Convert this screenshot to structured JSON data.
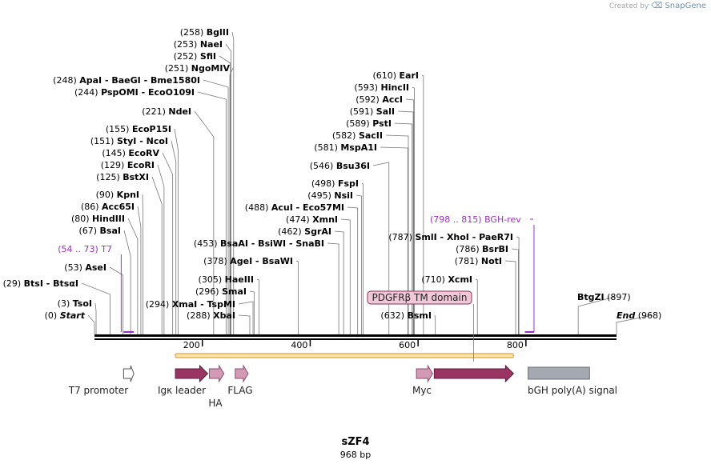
{
  "watermark": {
    "prefix": "Created by",
    "brand": "SnapGene"
  },
  "plasmid": {
    "name": "sZF4",
    "length": "968 bp",
    "total_bp": 968
  },
  "colors": {
    "backbone": "#000000",
    "primer": "#9b30c8",
    "feature_arrow": "#9a3462",
    "small_arrow": "#d29ab4",
    "polyA": "#a4a8b0",
    "orf_fill": "#f9e6b2",
    "orf_stroke": "#e0a23c",
    "tm_label_fill": "#f0c9d8",
    "tm_label_stroke": "#8a3050",
    "line": "#555555"
  },
  "ticks": [
    {
      "bp": 200,
      "label": "200"
    },
    {
      "bp": 400,
      "label": "400"
    },
    {
      "bp": 600,
      "label": "600"
    },
    {
      "bp": 800,
      "label": "800"
    }
  ],
  "sites": [
    {
      "bp": 258,
      "pos": "(258)",
      "name": "BglII"
    },
    {
      "bp": 253,
      "pos": "(253)",
      "name": "NaeI"
    },
    {
      "bp": 252,
      "pos": "(252)",
      "name": "SfiI"
    },
    {
      "bp": 251,
      "pos": "(251)",
      "name": "NgoMIV"
    },
    {
      "bp": 248,
      "pos": "(248)",
      "name": "ApaI  - BaeGI  - Bme1580I"
    },
    {
      "bp": 244,
      "pos": "(244)",
      "name": "PspOMI  - EcoO109I"
    },
    {
      "bp": 221,
      "pos": "(221)",
      "name": "NdeI"
    },
    {
      "bp": 155,
      "pos": "(155)",
      "name": "EcoP15I"
    },
    {
      "bp": 151,
      "pos": "(151)",
      "name": "StyI  - NcoI"
    },
    {
      "bp": 145,
      "pos": "(145)",
      "name": "EcoRV"
    },
    {
      "bp": 129,
      "pos": "(129)",
      "name": "EcoRI"
    },
    {
      "bp": 125,
      "pos": "(125)",
      "name": "BstXI"
    },
    {
      "bp": 90,
      "pos": "(90)",
      "name": "KpnI"
    },
    {
      "bp": 86,
      "pos": "(86)",
      "name": "Acc65I"
    },
    {
      "bp": 80,
      "pos": "(80)",
      "name": "HindIII"
    },
    {
      "bp": 67,
      "pos": "(67)",
      "name": "BsaI"
    },
    {
      "bp": 53,
      "pos": "(53)",
      "name": "AseI"
    },
    {
      "bp": 29,
      "pos": "(29)",
      "name": "BtsI  - BtsαI"
    },
    {
      "bp": 3,
      "pos": "(3)",
      "name": "TsoI"
    },
    {
      "bp": 0,
      "pos": "(0)",
      "name": "Start"
    },
    {
      "bp": 294,
      "pos": "(294)",
      "name": "XmaI  - TspMI"
    },
    {
      "bp": 288,
      "pos": "(288)",
      "name": "XbaI"
    },
    {
      "bp": 296,
      "pos": "(296)",
      "name": "SmaI"
    },
    {
      "bp": 305,
      "pos": "(305)",
      "name": "HaeIII"
    },
    {
      "bp": 378,
      "pos": "(378)",
      "name": "AgeI  - BsaWI"
    },
    {
      "bp": 453,
      "pos": "(453)",
      "name": "BsaAI  - BsiWI  - SnaBI"
    },
    {
      "bp": 462,
      "pos": "(462)",
      "name": "SgrAI"
    },
    {
      "bp": 474,
      "pos": "(474)",
      "name": "XmnI"
    },
    {
      "bp": 488,
      "pos": "(488)",
      "name": "AcuI  - Eco57MI"
    },
    {
      "bp": 495,
      "pos": "(495)",
      "name": "NsiI"
    },
    {
      "bp": 498,
      "pos": "(498)",
      "name": "FspI"
    },
    {
      "bp": 546,
      "pos": "(546)",
      "name": "Bsu36I"
    },
    {
      "bp": 581,
      "pos": "(581)",
      "name": "MspA1I"
    },
    {
      "bp": 582,
      "pos": "(582)",
      "name": "SacII"
    },
    {
      "bp": 589,
      "pos": "(589)",
      "name": "PstI"
    },
    {
      "bp": 591,
      "pos": "(591)",
      "name": "SalI"
    },
    {
      "bp": 592,
      "pos": "(592)",
      "name": "AccI"
    },
    {
      "bp": 593,
      "pos": "(593)",
      "name": "HincII"
    },
    {
      "bp": 610,
      "pos": "(610)",
      "name": "EarI"
    },
    {
      "bp": 787,
      "pos": "(787)",
      "name": "SmlI  - XhoI  - PaeR7I"
    },
    {
      "bp": 786,
      "pos": "(786)",
      "name": "BsrBI"
    },
    {
      "bp": 781,
      "pos": "(781)",
      "name": "NotI"
    },
    {
      "bp": 710,
      "pos": "(710)",
      "name": "XcmI"
    },
    {
      "bp": 632,
      "pos": "(632)",
      "name": "BsmI"
    },
    {
      "bp": 897,
      "pos": "(897)",
      "name": "BtgZI"
    },
    {
      "bp": 968,
      "pos": "(968)",
      "name": "End"
    }
  ],
  "primers": [
    {
      "range": "(54 .. 73)",
      "name": "T7",
      "start": 54,
      "end": 73
    },
    {
      "range": "(798 .. 815)",
      "name": "BGH-rev",
      "start": 798,
      "end": 815
    }
  ],
  "features": [
    {
      "name": "T7 promoter",
      "start": 54,
      "end": 73,
      "style": "outline"
    },
    {
      "name": "Igκ leader",
      "start": 150,
      "end": 210,
      "style": "arrow"
    },
    {
      "name": "HA",
      "start": 213,
      "end": 240,
      "style": "small"
    },
    {
      "name": "FLAG",
      "start": 261,
      "end": 285,
      "style": "small"
    },
    {
      "name": "Myc",
      "start": 597,
      "end": 627,
      "style": "small"
    },
    {
      "name": "PDGFRβ TM domain",
      "start": 630,
      "end": 777,
      "style": "arrow"
    },
    {
      "name": "bGH poly(A) signal",
      "start": 804,
      "end": 918,
      "style": "box"
    }
  ],
  "orf": {
    "start": 150,
    "end": 777
  },
  "tm_label": {
    "text": "PDGFRβ TM domain",
    "bp": 703
  }
}
